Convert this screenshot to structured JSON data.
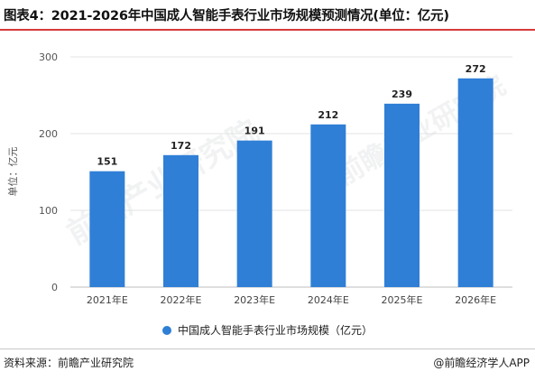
{
  "header": {
    "title": "图表4：2021-2026年中国成人智能手表行业市场规模预测情况(单位：亿元)"
  },
  "footer": {
    "source": "资料来源：前瞻产业研究院",
    "brand": "@前瞻经济学人APP"
  },
  "watermark": {
    "text": "前瞻产业研究院"
  },
  "colors": {
    "bar": "#2f7fd6",
    "accent_rule": "#d73a3a",
    "grid": "#e3e3e3"
  },
  "chart_data": {
    "type": "bar",
    "title": "图表4：2021-2026年中国成人智能手表行业市场规模预测情况(单位：亿元)",
    "categories": [
      "2021年E",
      "2022年E",
      "2023年E",
      "2024年E",
      "2025年E",
      "2026年E"
    ],
    "series": [
      {
        "name": "中国成人智能手表行业市场规模（亿元）",
        "values": [
          151,
          172,
          191,
          212,
          239,
          272
        ]
      }
    ],
    "ylabel": "单位：亿元",
    "xlabel": "",
    "ylim": [
      0,
      300
    ],
    "yticks": [
      0,
      100,
      200,
      300
    ],
    "grid": true,
    "legend": "bottom-center",
    "data_labels": true
  }
}
